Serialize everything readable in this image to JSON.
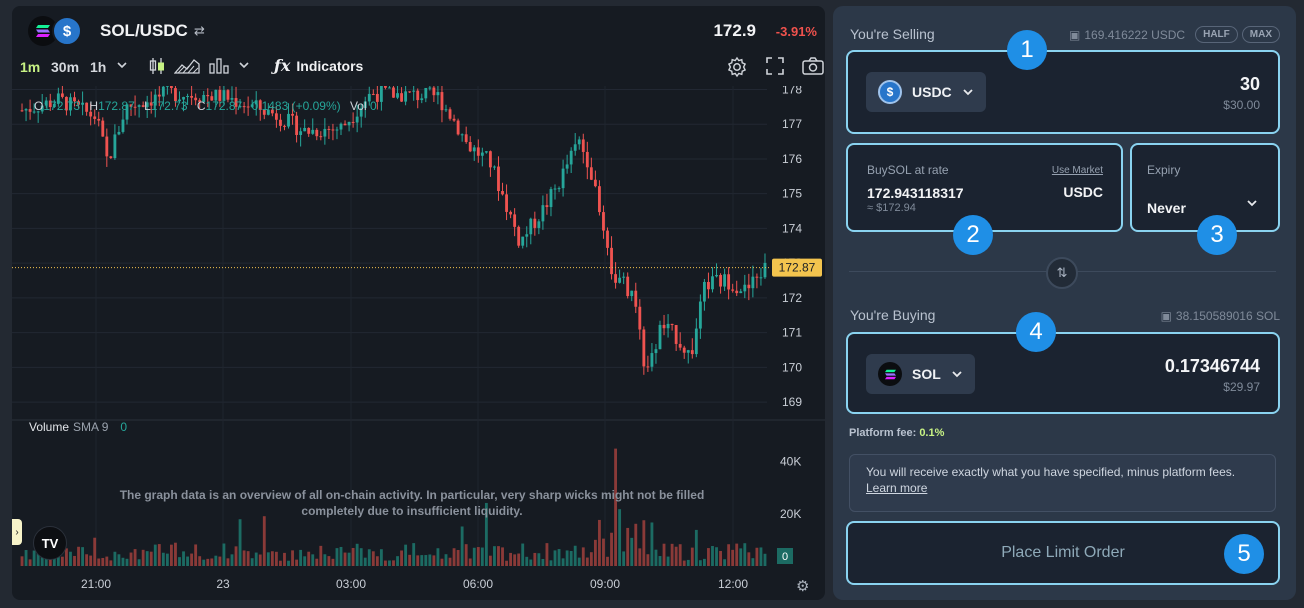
{
  "header": {
    "pair": "SOL/USDC",
    "price": "172.9",
    "change": "-3.91%"
  },
  "toolbar": {
    "timeframes": [
      "1m",
      "30m",
      "1h"
    ],
    "active_timeframe": "1m",
    "indicators_label": "Indicators",
    "icons": [
      "chevron-down-icon",
      "candles-icon",
      "area-chart-icon",
      "bars-icon",
      "chevron-down-icon",
      "fx-icon",
      "gear-icon",
      "fullscreen-icon",
      "camera-icon"
    ]
  },
  "ohlc": {
    "o_label": "O",
    "o": "172.73",
    "h_label": "H",
    "h": "172.87",
    "l_label": "L",
    "l": "172.73",
    "c_label": "C",
    "c": "172.87",
    "chg": "0.1483 (+0.09%)",
    "vol_label": "Vol",
    "vol": "0"
  },
  "volume": {
    "label": "Volume",
    "sma": "SMA 9",
    "value": "0",
    "current": "0"
  },
  "disclaimer": "The graph data is an overview of all on-chain activity. In particular, very sharp wicks might not be filled completely due to insufficient liquidity.",
  "tv_logo": "TV",
  "chart_data": {
    "type": "candlestick",
    "price_axis": [
      "178",
      "177",
      "176",
      "175",
      "174",
      "173",
      "172",
      "171",
      "170",
      "169"
    ],
    "volume_axis": [
      "40K",
      "20K"
    ],
    "time_axis": [
      "21:00",
      "23",
      "03:00",
      "06:00",
      "09:00",
      "12:00"
    ],
    "last_price_label": "172.87",
    "last_price": 172.87,
    "price_range": [
      168.6,
      178.1
    ],
    "volume_range": [
      0,
      46000
    ],
    "path_keypoints": [
      {
        "t": 0.0,
        "p": 177.4
      },
      {
        "t": 0.05,
        "p": 177.7
      },
      {
        "t": 0.1,
        "p": 177.2
      },
      {
        "t": 0.115,
        "p": 175.9
      },
      {
        "t": 0.14,
        "p": 177.5
      },
      {
        "t": 0.2,
        "p": 177.9
      },
      {
        "t": 0.27,
        "p": 177.8
      },
      {
        "t": 0.34,
        "p": 177.3
      },
      {
        "t": 0.38,
        "p": 176.8
      },
      {
        "t": 0.43,
        "p": 176.9
      },
      {
        "t": 0.47,
        "p": 177.9
      },
      {
        "t": 0.56,
        "p": 177.8
      },
      {
        "t": 0.585,
        "p": 177.0
      },
      {
        "t": 0.6,
        "p": 176.4
      },
      {
        "t": 0.63,
        "p": 175.9
      },
      {
        "t": 0.655,
        "p": 174.5
      },
      {
        "t": 0.67,
        "p": 173.6
      },
      {
        "t": 0.7,
        "p": 174.5
      },
      {
        "t": 0.72,
        "p": 175.2
      },
      {
        "t": 0.735,
        "p": 175.9
      },
      {
        "t": 0.75,
        "p": 176.5
      },
      {
        "t": 0.765,
        "p": 175.8
      },
      {
        "t": 0.775,
        "p": 174.6
      },
      {
        "t": 0.785,
        "p": 173.9
      },
      {
        "t": 0.795,
        "p": 172.6
      },
      {
        "t": 0.81,
        "p": 172.4
      },
      {
        "t": 0.83,
        "p": 171.6
      },
      {
        "t": 0.84,
        "p": 169.6
      },
      {
        "t": 0.86,
        "p": 171.2
      },
      {
        "t": 0.88,
        "p": 170.9
      },
      {
        "t": 0.9,
        "p": 170.3
      },
      {
        "t": 0.92,
        "p": 172.4
      },
      {
        "t": 0.95,
        "p": 172.5
      },
      {
        "t": 0.975,
        "p": 172.2
      },
      {
        "t": 1.0,
        "p": 172.87
      }
    ],
    "candle_count": 185,
    "up_color": "#26a69a",
    "down_color": "#ef5350"
  },
  "selling": {
    "label": "You're Selling",
    "balance": "169.416222 USDC",
    "half": "HALF",
    "max": "MAX",
    "token": "USDC",
    "amount": "30",
    "amount_usd": "$30.00"
  },
  "rate": {
    "label": "BuySOL at rate",
    "use_market": "Use Market",
    "value": "172.943118317",
    "approx": "≈ $172.94",
    "unit": "USDC"
  },
  "expiry": {
    "label": "Expiry",
    "value": "Never"
  },
  "buying": {
    "label": "You're Buying",
    "balance": "38.150589016 SOL",
    "token": "SOL",
    "amount": "0.17346744",
    "amount_usd": "$29.97"
  },
  "fee": {
    "label": "Platform fee:",
    "value": "0.1%"
  },
  "notice": {
    "text": "You will receive exactly what you have specified, minus platform fees.",
    "link": "Learn more"
  },
  "place_order": "Place Limit Order",
  "badges": [
    "1",
    "2",
    "3",
    "4",
    "5"
  ],
  "colors": {
    "accent_border": "#8ad3f0",
    "badge": "#1f8fe6",
    "active_timeframe": "#c7f284",
    "negative": "#f0524d",
    "last_price_tag": "#f3c44e"
  }
}
